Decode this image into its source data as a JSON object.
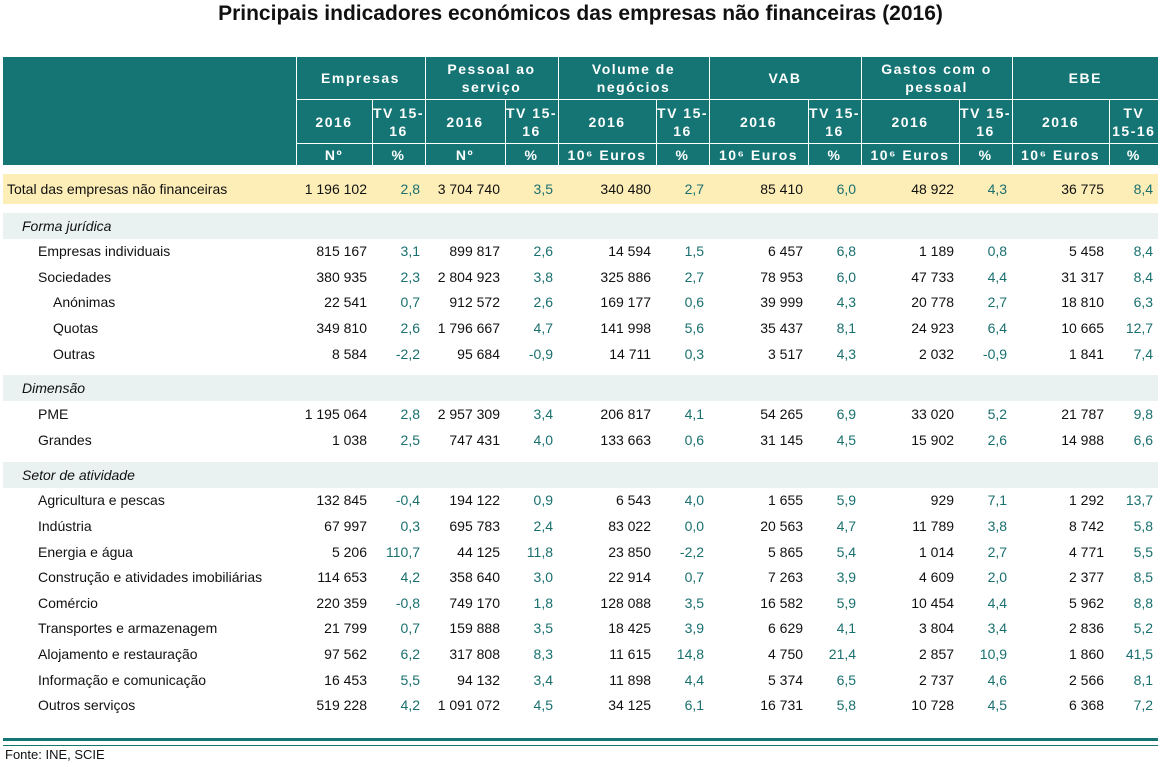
{
  "title": "Principais indicadores económicos das empresas não financeiras (2016)",
  "source": "Fonte: INE, SCIE",
  "colors": {
    "header_bg": "#157474",
    "total_bg": "#fdeeb8",
    "section_bg": "#eaf1f1",
    "rate_text": "#1a6f6f"
  },
  "header": {
    "groups": [
      "Empresas",
      "Pessoal ao serviço",
      "Volume de negócios",
      "VAB",
      "Gastos com o pessoal",
      "EBE"
    ],
    "year": "2016",
    "tv": "TV 15-16",
    "units": [
      "Nº",
      "%",
      "Nº",
      "%",
      "10⁶ Euros",
      "%",
      "10⁶ Euros",
      "%",
      "10⁶ Euros",
      "%",
      "10⁶ Euros",
      "%"
    ]
  },
  "total": {
    "label": "Total das empresas não financeiras",
    "values": [
      "1 196 102",
      "2,8",
      "3 704 740",
      "3,5",
      "340 480",
      "2,7",
      "85 410",
      "6,0",
      "48 922",
      "4,3",
      "36 775",
      "8,4"
    ]
  },
  "sections": [
    {
      "title": "Forma jurídica",
      "rows": [
        {
          "label": "Empresas individuais",
          "level": 1,
          "values": [
            "815 167",
            "3,1",
            "899 817",
            "2,6",
            "14 594",
            "1,5",
            "6 457",
            "6,8",
            "1 189",
            "0,8",
            "5 458",
            "8,4"
          ]
        },
        {
          "label": "Sociedades",
          "level": 1,
          "values": [
            "380 935",
            "2,3",
            "2 804 923",
            "3,8",
            "325 886",
            "2,7",
            "78 953",
            "6,0",
            "47 733",
            "4,4",
            "31 317",
            "8,4"
          ]
        },
        {
          "label": "Anónimas",
          "level": 2,
          "values": [
            "22 541",
            "0,7",
            "912 572",
            "2,6",
            "169 177",
            "0,6",
            "39 999",
            "4,3",
            "20 778",
            "2,7",
            "18 810",
            "6,3"
          ]
        },
        {
          "label": "Quotas",
          "level": 2,
          "values": [
            "349 810",
            "2,6",
            "1 796 667",
            "4,7",
            "141 998",
            "5,6",
            "35 437",
            "8,1",
            "24 923",
            "6,4",
            "10 665",
            "12,7"
          ]
        },
        {
          "label": "Outras",
          "level": 2,
          "values": [
            "8 584",
            "-2,2",
            "95 684",
            "-0,9",
            "14 711",
            "0,3",
            "3 517",
            "4,3",
            "2 032",
            "-0,9",
            "1 841",
            "7,4"
          ]
        }
      ]
    },
    {
      "title": "Dimensão",
      "rows": [
        {
          "label": "PME",
          "level": 1,
          "values": [
            "1 195 064",
            "2,8",
            "2 957 309",
            "3,4",
            "206 817",
            "4,1",
            "54 265",
            "6,9",
            "33 020",
            "5,2",
            "21 787",
            "9,8"
          ]
        },
        {
          "label": "Grandes",
          "level": 1,
          "values": [
            "1 038",
            "2,5",
            "747 431",
            "4,0",
            "133 663",
            "0,6",
            "31 145",
            "4,5",
            "15 902",
            "2,6",
            "14 988",
            "6,6"
          ]
        }
      ]
    },
    {
      "title": "Setor de atividade",
      "rows": [
        {
          "label": "Agricultura e pescas",
          "level": 1,
          "values": [
            "132 845",
            "-0,4",
            "194 122",
            "0,9",
            "6 543",
            "4,0",
            "1 655",
            "5,9",
            "929",
            "7,1",
            "1 292",
            "13,7"
          ]
        },
        {
          "label": "Indústria",
          "level": 1,
          "values": [
            "67 997",
            "0,3",
            "695 783",
            "2,4",
            "83 022",
            "0,0",
            "20 563",
            "4,7",
            "11 789",
            "3,8",
            "8 742",
            "5,8"
          ]
        },
        {
          "label": "Energia e água",
          "level": 1,
          "values": [
            "5 206",
            "110,7",
            "44 125",
            "11,8",
            "23 850",
            "-2,2",
            "5 865",
            "5,4",
            "1 014",
            "2,7",
            "4 771",
            "5,5"
          ]
        },
        {
          "label": "Construção e atividades imobiliárias",
          "level": 1,
          "values": [
            "114 653",
            "4,2",
            "358 640",
            "3,0",
            "22 914",
            "0,7",
            "7 263",
            "3,9",
            "4 609",
            "2,0",
            "2 377",
            "8,5"
          ]
        },
        {
          "label": "Comércio",
          "level": 1,
          "values": [
            "220 359",
            "-0,8",
            "749 170",
            "1,8",
            "128 088",
            "3,5",
            "16 582",
            "5,9",
            "10 454",
            "4,4",
            "5 962",
            "8,8"
          ]
        },
        {
          "label": "Transportes e armazenagem",
          "level": 1,
          "values": [
            "21 799",
            "0,7",
            "159 888",
            "3,5",
            "18 425",
            "3,9",
            "6 629",
            "4,1",
            "3 804",
            "3,4",
            "2 836",
            "5,2"
          ]
        },
        {
          "label": "Alojamento e restauração",
          "level": 1,
          "values": [
            "97 562",
            "6,2",
            "317 808",
            "8,3",
            "11 615",
            "14,8",
            "4 750",
            "21,4",
            "2 857",
            "10,9",
            "1 860",
            "41,5"
          ]
        },
        {
          "label": "Informação e comunicação",
          "level": 1,
          "values": [
            "16 453",
            "5,5",
            "94 132",
            "3,4",
            "11 898",
            "4,4",
            "5 374",
            "6,5",
            "2 737",
            "4,6",
            "2 566",
            "8,1"
          ]
        },
        {
          "label": "Outros serviços",
          "level": 1,
          "values": [
            "519 228",
            "4,2",
            "1 091 072",
            "4,5",
            "34 125",
            "6,1",
            "16 731",
            "5,8",
            "10 728",
            "4,5",
            "6 368",
            "7,2"
          ]
        }
      ]
    }
  ]
}
